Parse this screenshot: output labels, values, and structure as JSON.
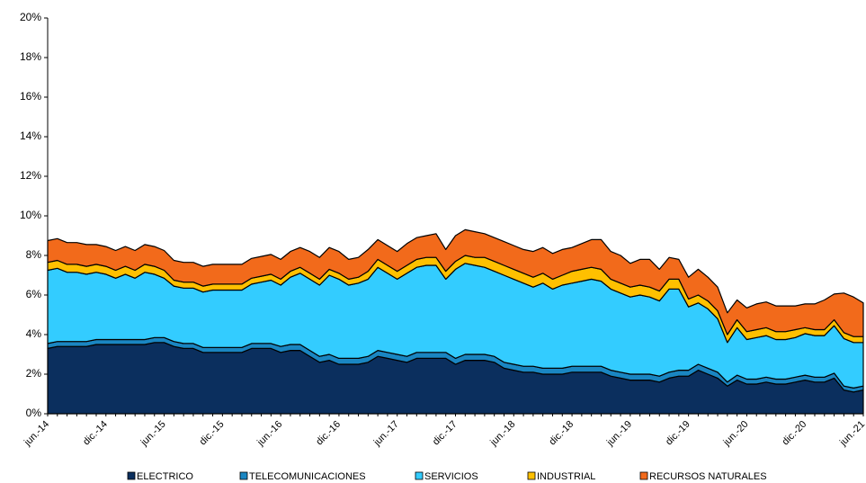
{
  "chart_data": {
    "type": "stacked-area",
    "categories": [
      "jun.-14",
      null,
      null,
      null,
      null,
      null,
      "dic.-14",
      null,
      null,
      null,
      null,
      null,
      "jun.-15",
      null,
      null,
      null,
      null,
      null,
      "dic.-15",
      null,
      null,
      null,
      null,
      null,
      "jun.-16",
      null,
      null,
      null,
      null,
      null,
      "dic.-16",
      null,
      null,
      null,
      null,
      null,
      "jun.-17",
      null,
      null,
      null,
      null,
      null,
      "dic.-17",
      null,
      null,
      null,
      null,
      null,
      "jun.-18",
      null,
      null,
      null,
      null,
      null,
      "dic.-18",
      null,
      null,
      null,
      null,
      null,
      "jun.-19",
      null,
      null,
      null,
      null,
      null,
      "dic.-19",
      null,
      null,
      null,
      null,
      null,
      "jun.-20",
      null,
      null,
      null,
      null,
      null,
      "dic.-20",
      null,
      null,
      null,
      null,
      null,
      "jun.-21"
    ],
    "series": [
      {
        "name": "ELECTRICO",
        "color": "#0b2f5e",
        "values": [
          3.3,
          3.4,
          3.4,
          3.4,
          3.4,
          3.5,
          3.5,
          3.5,
          3.5,
          3.5,
          3.5,
          3.6,
          3.6,
          3.4,
          3.3,
          3.3,
          3.1,
          3.1,
          3.1,
          3.1,
          3.1,
          3.3,
          3.3,
          3.3,
          3.1,
          3.2,
          3.2,
          2.9,
          2.6,
          2.7,
          2.5,
          2.5,
          2.5,
          2.6,
          2.9,
          2.8,
          2.7,
          2.6,
          2.8,
          2.8,
          2.8,
          2.8,
          2.5,
          2.7,
          2.7,
          2.7,
          2.6,
          2.3,
          2.2,
          2.1,
          2.1,
          2.0,
          2.0,
          2.0,
          2.1,
          2.1,
          2.1,
          2.1,
          1.9,
          1.8,
          1.7,
          1.7,
          1.7,
          1.6,
          1.8,
          1.9,
          1.9,
          2.2,
          2.0,
          1.8,
          1.4,
          1.7,
          1.5,
          1.5,
          1.6,
          1.5,
          1.5,
          1.6,
          1.7,
          1.6,
          1.6,
          1.8,
          1.2,
          1.1,
          1.2
        ]
      },
      {
        "name": "TELECOMUNICACIONES",
        "color": "#1a86c2",
        "values": [
          0.25,
          0.25,
          0.25,
          0.25,
          0.25,
          0.25,
          0.25,
          0.25,
          0.25,
          0.25,
          0.25,
          0.25,
          0.25,
          0.25,
          0.25,
          0.25,
          0.25,
          0.25,
          0.25,
          0.25,
          0.25,
          0.25,
          0.25,
          0.25,
          0.3,
          0.3,
          0.3,
          0.3,
          0.3,
          0.3,
          0.3,
          0.3,
          0.3,
          0.3,
          0.3,
          0.3,
          0.3,
          0.3,
          0.3,
          0.3,
          0.3,
          0.3,
          0.3,
          0.3,
          0.3,
          0.3,
          0.3,
          0.3,
          0.3,
          0.3,
          0.3,
          0.3,
          0.3,
          0.3,
          0.3,
          0.3,
          0.3,
          0.3,
          0.3,
          0.3,
          0.3,
          0.3,
          0.3,
          0.3,
          0.3,
          0.3,
          0.3,
          0.3,
          0.3,
          0.3,
          0.2,
          0.25,
          0.25,
          0.25,
          0.25,
          0.25,
          0.25,
          0.25,
          0.25,
          0.25,
          0.25,
          0.25,
          0.2,
          0.2,
          0.2
        ]
      },
      {
        "name": "SERVICIOS",
        "color": "#33ccff",
        "values": [
          3.7,
          3.7,
          3.5,
          3.5,
          3.4,
          3.4,
          3.3,
          3.1,
          3.3,
          3.1,
          3.4,
          3.2,
          3.0,
          2.8,
          2.8,
          2.8,
          2.8,
          2.9,
          2.9,
          2.9,
          2.9,
          3.0,
          3.1,
          3.2,
          3.1,
          3.4,
          3.6,
          3.6,
          3.6,
          4.0,
          4.0,
          3.7,
          3.8,
          3.9,
          4.2,
          4.0,
          3.8,
          4.2,
          4.3,
          4.4,
          4.4,
          3.7,
          4.5,
          4.6,
          4.5,
          4.4,
          4.3,
          4.4,
          4.3,
          4.2,
          4.0,
          4.3,
          4.0,
          4.2,
          4.2,
          4.3,
          4.4,
          4.3,
          4.1,
          4.0,
          3.9,
          4.0,
          3.9,
          3.8,
          4.2,
          4.1,
          3.2,
          3.1,
          3.0,
          2.7,
          2.0,
          2.4,
          2.0,
          2.1,
          2.1,
          2.0,
          2.0,
          2.0,
          2.1,
          2.1,
          2.1,
          2.4,
          2.4,
          2.3,
          2.2
        ]
      },
      {
        "name": "INDUSTRIAL",
        "color": "#ffc000",
        "values": [
          0.4,
          0.4,
          0.4,
          0.4,
          0.4,
          0.4,
          0.4,
          0.4,
          0.4,
          0.4,
          0.4,
          0.4,
          0.4,
          0.3,
          0.3,
          0.3,
          0.3,
          0.3,
          0.3,
          0.3,
          0.3,
          0.3,
          0.3,
          0.3,
          0.3,
          0.3,
          0.3,
          0.3,
          0.3,
          0.3,
          0.3,
          0.3,
          0.3,
          0.4,
          0.4,
          0.4,
          0.4,
          0.4,
          0.4,
          0.4,
          0.4,
          0.4,
          0.4,
          0.4,
          0.4,
          0.5,
          0.5,
          0.5,
          0.5,
          0.5,
          0.5,
          0.5,
          0.5,
          0.5,
          0.6,
          0.6,
          0.6,
          0.6,
          0.5,
          0.5,
          0.5,
          0.5,
          0.5,
          0.5,
          0.5,
          0.5,
          0.4,
          0.4,
          0.4,
          0.4,
          0.4,
          0.4,
          0.4,
          0.4,
          0.4,
          0.4,
          0.4,
          0.4,
          0.3,
          0.3,
          0.3,
          0.3,
          0.3,
          0.3,
          0.3
        ]
      },
      {
        "name": "RECURSOS NATURALES",
        "color": "#f26a1b",
        "values": [
          1.1,
          1.1,
          1.1,
          1.1,
          1.1,
          1.0,
          1.0,
          1.0,
          1.0,
          1.0,
          1.0,
          1.0,
          1.0,
          1.0,
          1.0,
          1.0,
          1.0,
          1.0,
          1.0,
          1.0,
          1.0,
          1.0,
          1.0,
          1.0,
          1.0,
          1.0,
          1.0,
          1.1,
          1.1,
          1.1,
          1.1,
          1.0,
          1.0,
          1.1,
          1.0,
          1.0,
          1.0,
          1.1,
          1.1,
          1.1,
          1.2,
          1.1,
          1.3,
          1.3,
          1.3,
          1.2,
          1.2,
          1.2,
          1.2,
          1.2,
          1.3,
          1.3,
          1.3,
          1.3,
          1.2,
          1.3,
          1.4,
          1.5,
          1.4,
          1.4,
          1.2,
          1.3,
          1.4,
          1.1,
          1.1,
          1.0,
          1.1,
          1.3,
          1.2,
          1.2,
          1.1,
          1.0,
          1.2,
          1.3,
          1.3,
          1.3,
          1.3,
          1.2,
          1.2,
          1.3,
          1.5,
          1.3,
          2.0,
          2.0,
          1.7
        ]
      }
    ],
    "ylim": [
      0,
      20
    ],
    "yticks": [
      {
        "value": 0,
        "label": "0%"
      },
      {
        "value": 2,
        "label": "2%"
      },
      {
        "value": 4,
        "label": "4%"
      },
      {
        "value": 6,
        "label": "6%"
      },
      {
        "value": 8,
        "label": "8%"
      },
      {
        "value": 10,
        "label": "10%"
      },
      {
        "value": 12,
        "label": "12%"
      },
      {
        "value": 14,
        "label": "14%"
      },
      {
        "value": 16,
        "label": "16%"
      },
      {
        "value": 18,
        "label": "18%"
      },
      {
        "value": 20,
        "label": "20%"
      }
    ],
    "legend": "bottom"
  }
}
